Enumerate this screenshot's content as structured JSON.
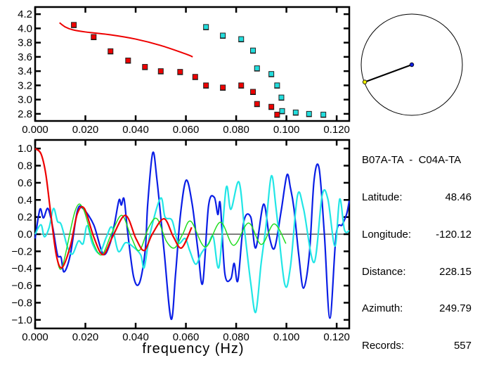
{
  "chart_data": [
    {
      "type": "scatter",
      "xlim": [
        0,
        0.125
      ],
      "ylim": [
        2.7,
        4.3
      ],
      "xticks": [
        "0.000",
        "0.020",
        "0.040",
        "0.060",
        "0.080",
        "0.100",
        "0.120"
      ],
      "yticks": [
        "2.8",
        "3.0",
        "3.2",
        "3.4",
        "3.6",
        "3.8",
        "4.0",
        "4.2"
      ],
      "grid": false,
      "series": [
        {
          "kind": "markers",
          "color": "#ee0000",
          "points": [
            [
              0.0154,
              4.05
            ],
            [
              0.0233,
              3.88
            ],
            [
              0.03,
              3.68
            ],
            [
              0.037,
              3.55
            ],
            [
              0.0437,
              3.46
            ],
            [
              0.05,
              3.4
            ],
            [
              0.0577,
              3.39
            ],
            [
              0.0637,
              3.32
            ],
            [
              0.068,
              3.2
            ],
            [
              0.0747,
              3.17
            ],
            [
              0.082,
              3.2
            ],
            [
              0.0867,
              3.11
            ],
            [
              0.0883,
              2.94
            ],
            [
              0.094,
              2.9
            ],
            [
              0.0963,
              2.79
            ]
          ]
        },
        {
          "kind": "markers",
          "color": "#22dddd",
          "points": [
            [
              0.068,
              4.02
            ],
            [
              0.0747,
              3.9
            ],
            [
              0.082,
              3.85
            ],
            [
              0.0867,
              3.69
            ],
            [
              0.0883,
              3.44
            ],
            [
              0.094,
              3.36
            ],
            [
              0.0963,
              3.2
            ],
            [
              0.098,
              3.03
            ],
            [
              0.0983,
              2.84
            ],
            [
              0.1037,
              2.82
            ],
            [
              0.109,
              2.8
            ],
            [
              0.1147,
              2.79
            ]
          ]
        },
        {
          "kind": "line",
          "color": "#ee0000",
          "points": [
            [
              0.0097,
              4.08
            ],
            [
              0.012,
              4.02
            ],
            [
              0.015,
              3.98
            ],
            [
              0.02,
              3.95
            ],
            [
              0.03,
              3.91
            ],
            [
              0.04,
              3.85
            ],
            [
              0.05,
              3.76
            ],
            [
              0.06,
              3.64
            ],
            [
              0.0627,
              3.6
            ]
          ]
        }
      ]
    },
    {
      "type": "line",
      "xlabel": "frequency (Hz)",
      "xlim": [
        0,
        0.125
      ],
      "ylim": [
        -1.1,
        1.1
      ],
      "xticks": [
        "0.000",
        "0.020",
        "0.040",
        "0.060",
        "0.080",
        "0.100",
        "0.120"
      ],
      "yticks": [
        "-1.0",
        "-0.8",
        "-0.6",
        "-0.4",
        "-0.2",
        "0.0",
        "0.2",
        "0.4",
        "0.6",
        "0.8",
        "1.0"
      ],
      "grid": false,
      "zero_line": true,
      "series": [
        {
          "color": "#0a1ee6",
          "width": 2.2,
          "points": [
            [
              0,
              -0.05
            ],
            [
              0.0019,
              0.29
            ],
            [
              0.0033,
              0.19
            ],
            [
              0.0051,
              0.3
            ],
            [
              0.007,
              0.08
            ],
            [
              0.0089,
              -0.24
            ],
            [
              0.0103,
              -0.27
            ],
            [
              0.0115,
              -0.44
            ],
            [
              0.014,
              -0.24
            ],
            [
              0.0168,
              0.27
            ],
            [
              0.019,
              0.3
            ],
            [
              0.0233,
              0.11
            ],
            [
              0.027,
              -0.23
            ],
            [
              0.0298,
              -0.11
            ],
            [
              0.0317,
              0.14
            ],
            [
              0.0334,
              0.4
            ],
            [
              0.0343,
              0.34
            ],
            [
              0.0354,
              0.41
            ],
            [
              0.0368,
              0.03
            ],
            [
              0.0392,
              -0.5
            ],
            [
              0.0415,
              -0.57
            ],
            [
              0.0438,
              -0.19
            ],
            [
              0.0448,
              0.35
            ],
            [
              0.0468,
              0.95
            ],
            [
              0.0485,
              0.63
            ],
            [
              0.0513,
              -0.19
            ],
            [
              0.0541,
              -0.99
            ],
            [
              0.0559,
              -0.46
            ],
            [
              0.0578,
              0.22
            ],
            [
              0.0601,
              0.63
            ],
            [
              0.0625,
              0.35
            ],
            [
              0.0648,
              -0.19
            ],
            [
              0.0667,
              -0.57
            ],
            [
              0.069,
              0.33
            ],
            [
              0.0713,
              0.43
            ],
            [
              0.0727,
              0.23
            ],
            [
              0.0737,
              0.35
            ],
            [
              0.0755,
              -0.46
            ],
            [
              0.0779,
              -0.52
            ],
            [
              0.0792,
              -0.34
            ],
            [
              0.0807,
              -0.54
            ],
            [
              0.083,
              0.14
            ],
            [
              0.0858,
              0.2
            ],
            [
              0.0878,
              -0.16
            ],
            [
              0.0909,
              0.35
            ],
            [
              0.0932,
              -0.03
            ],
            [
              0.0953,
              -0.16
            ],
            [
              0.0979,
              0.27
            ],
            [
              0.1002,
              0.69
            ],
            [
              0.1016,
              0.54
            ],
            [
              0.103,
              0.3
            ],
            [
              0.1049,
              -0.24
            ],
            [
              0.1068,
              -0.63
            ],
            [
              0.1091,
              -0.24
            ],
            [
              0.111,
              0.63
            ],
            [
              0.113,
              0.77
            ],
            [
              0.1151,
              0.0
            ],
            [
              0.1173,
              -0.98
            ],
            [
              0.1198,
              0.0
            ],
            [
              0.1222,
              0.11
            ],
            [
              0.124,
              0.24
            ],
            [
              0.125,
              0.39
            ]
          ]
        },
        {
          "color": "#22e6e6",
          "width": 2.2,
          "points": [
            [
              0,
              0
            ],
            [
              0.0023,
              0.11
            ],
            [
              0.0037,
              -0.03
            ],
            [
              0.0056,
              0.08
            ],
            [
              0.0073,
              0.3
            ],
            [
              0.0089,
              0.15
            ],
            [
              0.0104,
              0.11
            ],
            [
              0.013,
              -0.16
            ],
            [
              0.0149,
              -0.23
            ],
            [
              0.0172,
              -0.08
            ],
            [
              0.0191,
              -0.11
            ],
            [
              0.0207,
              0.1
            ],
            [
              0.0228,
              -0.11
            ],
            [
              0.0256,
              -0.22
            ],
            [
              0.0284,
              -0.03
            ],
            [
              0.0306,
              0.08
            ],
            [
              0.0331,
              -0.2
            ],
            [
              0.0359,
              -0.1
            ],
            [
              0.0387,
              -0.14
            ],
            [
              0.042,
              -0.24
            ],
            [
              0.0434,
              -0.39
            ],
            [
              0.0457,
              0.0
            ],
            [
              0.0499,
              0.42
            ],
            [
              0.0517,
              0.2
            ],
            [
              0.0545,
              0.16
            ],
            [
              0.0569,
              -0.1
            ],
            [
              0.0597,
              -0.05
            ],
            [
              0.0615,
              -0.19
            ],
            [
              0.0639,
              -0.35
            ],
            [
              0.0662,
              -0.22
            ],
            [
              0.069,
              -0.11
            ],
            [
              0.0709,
              -0.03
            ],
            [
              0.0732,
              -0.38
            ],
            [
              0.076,
              0.54
            ],
            [
              0.0779,
              0.29
            ],
            [
              0.0811,
              0.61
            ],
            [
              0.0834,
              0.03
            ],
            [
              0.0858,
              -0.57
            ],
            [
              0.0878,
              -0.91
            ],
            [
              0.0899,
              -0.35
            ],
            [
              0.0918,
              0.08
            ],
            [
              0.094,
              0.68
            ],
            [
              0.096,
              0.27
            ],
            [
              0.0993,
              -0.58
            ],
            [
              0.1016,
              -0.38
            ],
            [
              0.1044,
              0.45
            ],
            [
              0.1068,
              0.3
            ],
            [
              0.111,
              -0.33
            ],
            [
              0.1142,
              0.45
            ],
            [
              0.1165,
              0.41
            ],
            [
              0.1193,
              -0.14
            ],
            [
              0.1212,
              0.41
            ],
            [
              0.1231,
              0.05
            ],
            [
              0.125,
              0.04
            ]
          ]
        },
        {
          "color": "#22dd22",
          "width": 1.5,
          "points": [
            [
              0.0084,
              -0.24
            ],
            [
              0.0107,
              -0.39
            ],
            [
              0.0159,
              0.27
            ],
            [
              0.0191,
              0.3
            ],
            [
              0.0233,
              -0.11
            ],
            [
              0.0266,
              -0.24
            ],
            [
              0.0303,
              0.0
            ],
            [
              0.0345,
              0.22
            ],
            [
              0.0382,
              -0.03
            ],
            [
              0.0415,
              -0.19
            ],
            [
              0.0452,
              0.08
            ],
            [
              0.0485,
              0.18
            ],
            [
              0.0522,
              -0.08
            ],
            [
              0.0555,
              -0.16
            ],
            [
              0.0587,
              0.0
            ],
            [
              0.062,
              0.15
            ],
            [
              0.0677,
              -0.15
            ],
            [
              0.0737,
              0.14
            ],
            [
              0.079,
              -0.13
            ],
            [
              0.0849,
              0.13
            ],
            [
              0.09,
              -0.12
            ],
            [
              0.0951,
              0.12
            ],
            [
              0.0998,
              -0.11
            ]
          ]
        },
        {
          "color": "#ee0000",
          "width": 2.2,
          "points": [
            [
              0,
              1.0
            ],
            [
              0.0023,
              0.94
            ],
            [
              0.0042,
              0.71
            ],
            [
              0.0061,
              0.27
            ],
            [
              0.0084,
              -0.24
            ],
            [
              0.0107,
              -0.39
            ],
            [
              0.014,
              -0.14
            ],
            [
              0.0168,
              0.24
            ],
            [
              0.0196,
              0.3
            ],
            [
              0.0233,
              -0.03
            ],
            [
              0.027,
              -0.24
            ],
            [
              0.0308,
              -0.03
            ],
            [
              0.0359,
              0.22
            ],
            [
              0.0401,
              -0.05
            ],
            [
              0.0434,
              -0.19
            ],
            [
              0.0466,
              0.0
            ],
            [
              0.0513,
              0.18
            ],
            [
              0.055,
              -0.03
            ],
            [
              0.0583,
              -0.16
            ],
            [
              0.0623,
              0.08
            ]
          ]
        }
      ]
    }
  ],
  "map": {
    "azimuth_deg": 249.79,
    "center_color": "#1020dd",
    "station_color": "#eeee00"
  },
  "info": {
    "title": "B07A-TA  -  C04A-TA",
    "rows": [
      {
        "label": "Latitude:",
        "value": "48.46"
      },
      {
        "label": "Longitude:",
        "value": "-120.12"
      },
      {
        "label": "Distance:",
        "value": "228.15"
      },
      {
        "label": "Azimuth:",
        "value": "249.79"
      },
      {
        "label": "Records:",
        "value": "557"
      }
    ]
  }
}
